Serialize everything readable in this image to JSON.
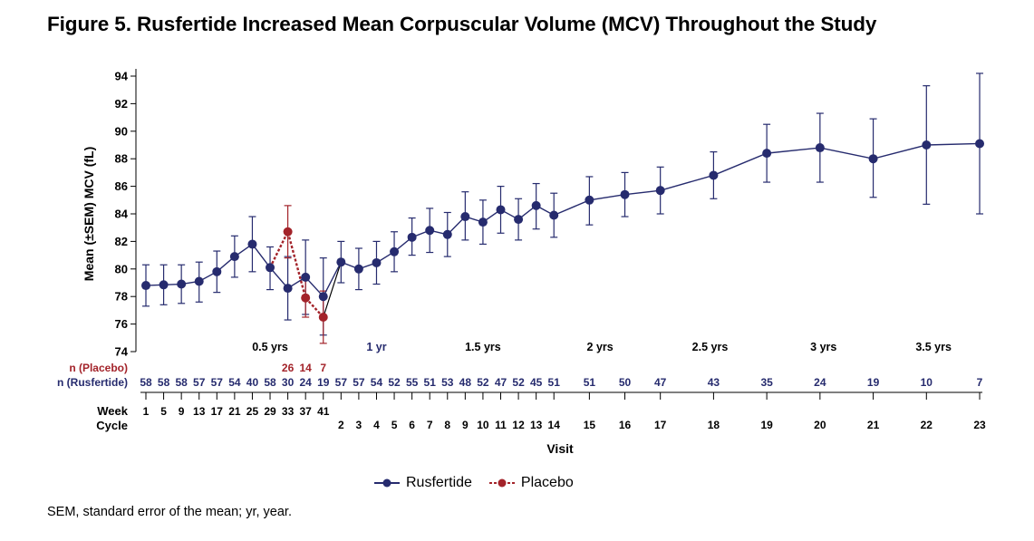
{
  "title": "Figure 5. Rusfertide Increased Mean Corpuscular Volume (MCV) Throughout the Study",
  "footnote": "SEM, standard error of the mean; yr, year.",
  "colors": {
    "rusfertide": "#262b6e",
    "placebo": "#a3232a",
    "axis": "#000000"
  },
  "chart_data": {
    "type": "line",
    "ylabel": "Mean (±SEM) MCV (fL)",
    "xlabel": "Visit",
    "ylim": [
      74,
      94
    ],
    "yticks": [
      74,
      76,
      78,
      80,
      82,
      84,
      86,
      88,
      90,
      92,
      94
    ],
    "n_placebo_label": "n (Placebo)",
    "n_rusfertide_label": "n (Rusfertide)",
    "week_label": "Week",
    "cycle_label": "Cycle",
    "year_marks": [
      {
        "label": "0.5 yrs",
        "pos": 3.5
      },
      {
        "label": "1 yr",
        "pos": 6.5
      },
      {
        "label": "1.5 yrs",
        "pos": 9.5
      },
      {
        "label": "2 yrs",
        "pos": 12.8
      },
      {
        "label": "2.5 yrs",
        "pos": 15.9
      },
      {
        "label": "3 yrs",
        "pos": 19.1
      },
      {
        "label": "3.5 yrs",
        "pos": 22.2
      }
    ],
    "visits": [
      {
        "week": "1",
        "n_rus": "58",
        "pos": 0
      },
      {
        "week": "5",
        "n_rus": "58",
        "pos": 0.5
      },
      {
        "week": "9",
        "n_rus": "58",
        "pos": 1
      },
      {
        "week": "13",
        "n_rus": "57",
        "pos": 1.5
      },
      {
        "week": "17",
        "n_rus": "57",
        "pos": 2
      },
      {
        "week": "21",
        "n_rus": "54",
        "pos": 2.5
      },
      {
        "week": "25",
        "n_rus": "40",
        "pos": 3
      },
      {
        "week": "29",
        "n_rus": "58",
        "pos": 3.5
      },
      {
        "week": "33",
        "n_rus": "30",
        "pos": 4,
        "n_pla": "26"
      },
      {
        "week": "37",
        "n_rus": "24",
        "pos": 4.5,
        "n_pla": "14"
      },
      {
        "week": "41",
        "n_rus": "19",
        "pos": 5,
        "n_pla": "7"
      },
      {
        "cycle": "2",
        "n_rus": "57",
        "pos": 5.5
      },
      {
        "cycle": "3",
        "n_rus": "57",
        "pos": 6
      },
      {
        "cycle": "4",
        "n_rus": "54",
        "pos": 6.5
      },
      {
        "cycle": "5",
        "n_rus": "52",
        "pos": 7
      },
      {
        "cycle": "6",
        "n_rus": "55",
        "pos": 7.5
      },
      {
        "cycle": "7",
        "n_rus": "51",
        "pos": 8
      },
      {
        "cycle": "8",
        "n_rus": "53",
        "pos": 8.5
      },
      {
        "cycle": "9",
        "n_rus": "48",
        "pos": 9
      },
      {
        "cycle": "10",
        "n_rus": "52",
        "pos": 9.5
      },
      {
        "cycle": "11",
        "n_rus": "47",
        "pos": 10
      },
      {
        "cycle": "12",
        "n_rus": "52",
        "pos": 10.5
      },
      {
        "cycle": "13",
        "n_rus": "45",
        "pos": 11
      },
      {
        "cycle": "14",
        "n_rus": "51",
        "pos": 11.5
      },
      {
        "cycle": "15",
        "n_rus": "51",
        "pos": 12.5
      },
      {
        "cycle": "16",
        "n_rus": "50",
        "pos": 13.5
      },
      {
        "cycle": "17",
        "n_rus": "47",
        "pos": 14.5
      },
      {
        "cycle": "18",
        "n_rus": "43",
        "pos": 16
      },
      {
        "cycle": "19",
        "n_rus": "35",
        "pos": 17.5
      },
      {
        "cycle": "20",
        "n_rus": "24",
        "pos": 19
      },
      {
        "cycle": "21",
        "n_rus": "19",
        "pos": 20.5
      },
      {
        "cycle": "22",
        "n_rus": "10",
        "pos": 22
      },
      {
        "cycle": "23",
        "n_rus": "7",
        "pos": 23.5
      }
    ],
    "series": [
      {
        "name": "Rusfertide",
        "color": "#262b6e",
        "style": "solid",
        "points": [
          {
            "pos": 0,
            "y": 78.8,
            "lo": 77.3,
            "hi": 80.3
          },
          {
            "pos": 0.5,
            "y": 78.85,
            "lo": 77.4,
            "hi": 80.3
          },
          {
            "pos": 1,
            "y": 78.9,
            "lo": 77.5,
            "hi": 80.3
          },
          {
            "pos": 1.5,
            "y": 79.1,
            "lo": 77.6,
            "hi": 80.5
          },
          {
            "pos": 2,
            "y": 79.8,
            "lo": 78.3,
            "hi": 81.3
          },
          {
            "pos": 2.5,
            "y": 80.9,
            "lo": 79.4,
            "hi": 82.4
          },
          {
            "pos": 3,
            "y": 81.8,
            "lo": 79.8,
            "hi": 83.8
          },
          {
            "pos": 3.5,
            "y": 80.1,
            "lo": 78.5,
            "hi": 81.6
          },
          {
            "pos": 4,
            "y": 78.6,
            "lo": 76.3,
            "hi": 80.9
          },
          {
            "pos": 4.5,
            "y": 79.4,
            "lo": 76.7,
            "hi": 82.1
          },
          {
            "pos": 5,
            "y": 78.0,
            "lo": 75.2,
            "hi": 80.8
          },
          {
            "pos": 5.5,
            "y": 80.5,
            "lo": 79.0,
            "hi": 82.0
          },
          {
            "pos": 6,
            "y": 80.0,
            "lo": 78.5,
            "hi": 81.5
          },
          {
            "pos": 6.5,
            "y": 80.45,
            "lo": 78.9,
            "hi": 82.0
          },
          {
            "pos": 7,
            "y": 81.25,
            "lo": 79.8,
            "hi": 82.7
          },
          {
            "pos": 7.5,
            "y": 82.3,
            "lo": 81.0,
            "hi": 83.7
          },
          {
            "pos": 8,
            "y": 82.8,
            "lo": 81.2,
            "hi": 84.4
          },
          {
            "pos": 8.5,
            "y": 82.5,
            "lo": 80.9,
            "hi": 84.1
          },
          {
            "pos": 9,
            "y": 83.8,
            "lo": 82.1,
            "hi": 85.6
          },
          {
            "pos": 9.5,
            "y": 83.4,
            "lo": 81.8,
            "hi": 85.0
          },
          {
            "pos": 10,
            "y": 84.3,
            "lo": 82.6,
            "hi": 86.0
          },
          {
            "pos": 10.5,
            "y": 83.6,
            "lo": 82.1,
            "hi": 85.1
          },
          {
            "pos": 11,
            "y": 84.6,
            "lo": 82.9,
            "hi": 86.2
          },
          {
            "pos": 11.5,
            "y": 83.9,
            "lo": 82.3,
            "hi": 85.5
          },
          {
            "pos": 12.5,
            "y": 85.0,
            "lo": 83.2,
            "hi": 86.7
          },
          {
            "pos": 13.5,
            "y": 85.4,
            "lo": 83.8,
            "hi": 87.0
          },
          {
            "pos": 14.5,
            "y": 85.7,
            "lo": 84.0,
            "hi": 87.4
          },
          {
            "pos": 16,
            "y": 86.8,
            "lo": 85.1,
            "hi": 88.5
          },
          {
            "pos": 17.5,
            "y": 88.4,
            "lo": 86.3,
            "hi": 90.5
          },
          {
            "pos": 19,
            "y": 88.8,
            "lo": 86.3,
            "hi": 91.3
          },
          {
            "pos": 20.5,
            "y": 88.0,
            "lo": 85.2,
            "hi": 90.9
          },
          {
            "pos": 22,
            "y": 89.0,
            "lo": 84.7,
            "hi": 93.3
          },
          {
            "pos": 23.5,
            "y": 89.1,
            "lo": 84.0,
            "hi": 94.2
          }
        ]
      },
      {
        "name": "Placebo",
        "color": "#a3232a",
        "style": "dashed",
        "points": [
          {
            "pos": 3.5,
            "y": 80.1
          },
          {
            "pos": 4,
            "y": 82.7,
            "lo": 80.8,
            "hi": 84.6
          },
          {
            "pos": 4.5,
            "y": 77.9,
            "lo": 76.5,
            "hi": 79.3
          },
          {
            "pos": 5,
            "y": 76.5,
            "lo": 74.6,
            "hi": 78.4
          }
        ]
      }
    ],
    "connector": {
      "from_pos": 5,
      "from_y": 76.5,
      "to_pos": 5.5,
      "to_y": 80.5
    }
  }
}
